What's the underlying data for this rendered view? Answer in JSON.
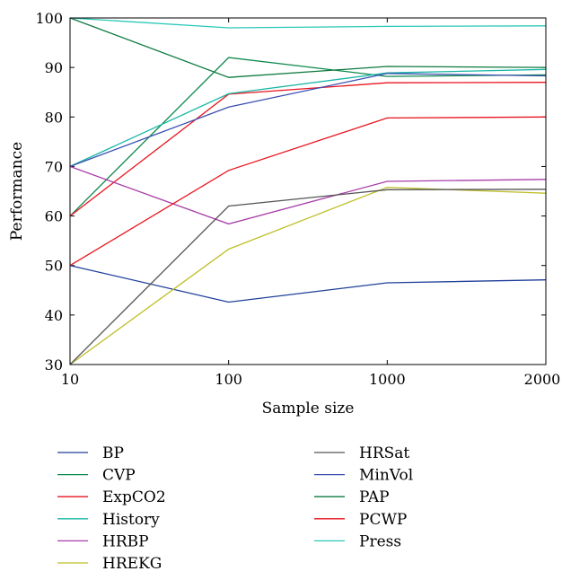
{
  "chart_data": {
    "type": "line",
    "title": "",
    "xlabel": "Sample size",
    "ylabel": "Performance",
    "categories": [
      "10",
      "100",
      "1000",
      "2000"
    ],
    "ylim": [
      30,
      100
    ],
    "yticks": [
      "30",
      "40",
      "50",
      "60",
      "70",
      "80",
      "90",
      "100"
    ],
    "grid": false,
    "legend_position": "bottom",
    "series": [
      {
        "name": "BP",
        "color": "#1f3f9a",
        "values": [
          50,
          42.6,
          46.5,
          47.1
        ]
      },
      {
        "name": "CVP",
        "color": "#0e8a4e",
        "values": [
          60,
          92,
          88.2,
          88.5
        ]
      },
      {
        "name": "ExpCO2",
        "color": "#e8141e",
        "values": [
          60,
          84.6,
          86.9,
          87
        ]
      },
      {
        "name": "History",
        "color": "#19b7a6",
        "values": [
          70,
          84.7,
          88.9,
          89.6
        ]
      },
      {
        "name": "HRBP",
        "color": "#a83ea8",
        "values": [
          70,
          58.4,
          67,
          67.4
        ]
      },
      {
        "name": "HREKG",
        "color": "#bfbf2a",
        "values": [
          30,
          53.3,
          65.8,
          64.6
        ]
      },
      {
        "name": "HRSat",
        "color": "#555555",
        "values": [
          30,
          62,
          65.3,
          65.4
        ]
      },
      {
        "name": "MinVol",
        "color": "#3a4fb0",
        "values": [
          70,
          82,
          88.8,
          88.3
        ]
      },
      {
        "name": "PAP",
        "color": "#0e7a40",
        "values": [
          100,
          88,
          90.2,
          90
        ]
      },
      {
        "name": "PCWP",
        "color": "#e8141e",
        "values": [
          50,
          69.2,
          79.8,
          80
        ]
      },
      {
        "name": "Press",
        "color": "#2ac9b8",
        "values": [
          100,
          98,
          98.3,
          98.4
        ]
      }
    ]
  }
}
